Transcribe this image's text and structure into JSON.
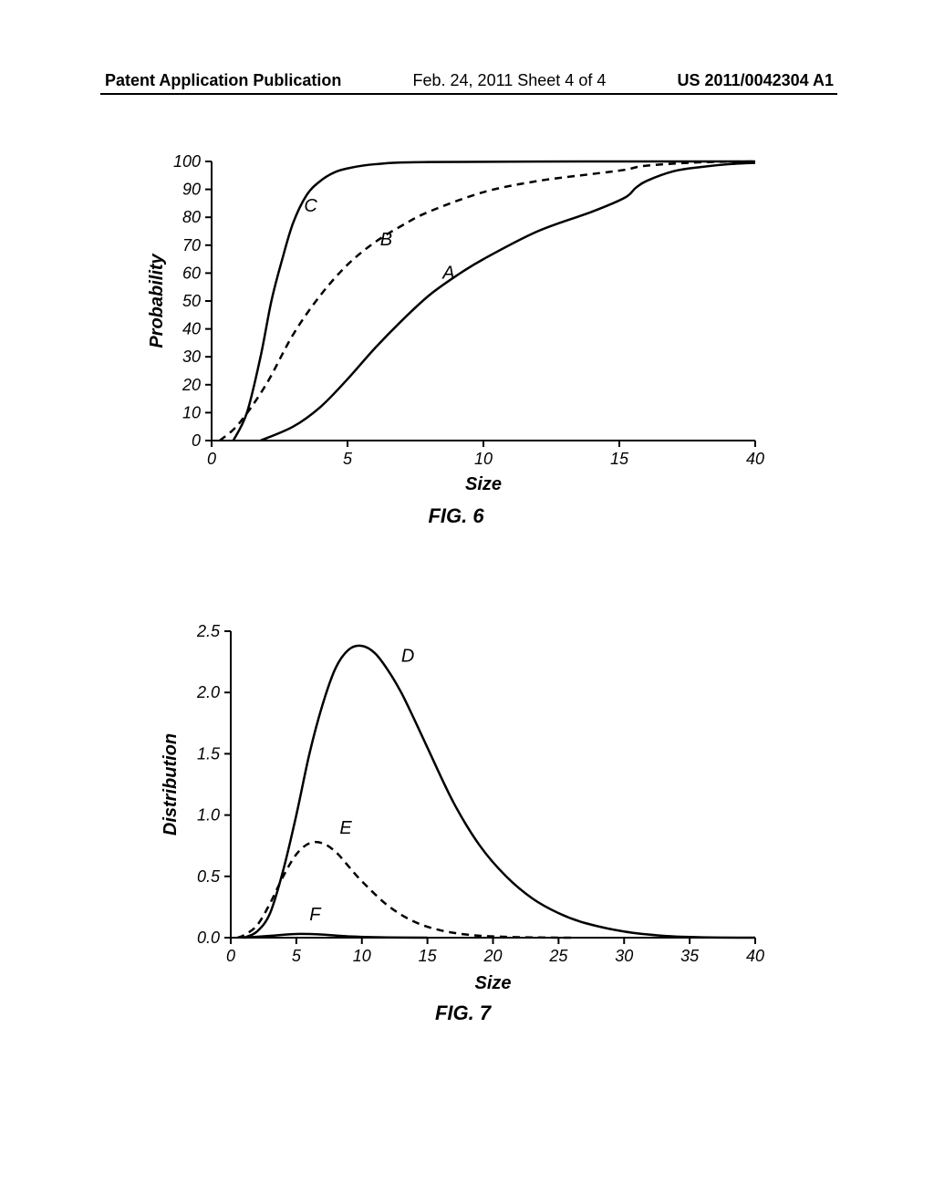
{
  "header": {
    "left": "Patent Application Publication",
    "center": "Feb. 24, 2011  Sheet 4 of 4",
    "right": "US 2011/0042304 A1"
  },
  "fig6": {
    "type": "line",
    "caption": "FIG. 6",
    "xlabel": "Size",
    "ylabel": "Probability",
    "xlim": [
      0,
      40
    ],
    "ylim": [
      0,
      100
    ],
    "xticks": [
      0,
      5,
      10,
      15,
      40
    ],
    "yticks": [
      0,
      10,
      20,
      30,
      40,
      50,
      60,
      70,
      80,
      90,
      100
    ],
    "background_color": "#ffffff",
    "axis_color": "#000000",
    "line_width": 2.5,
    "series": [
      {
        "name": "A",
        "label_pos": {
          "x": 8.5,
          "y": 58
        },
        "dash": "none",
        "color": "#000000",
        "points": [
          [
            1.8,
            0
          ],
          [
            3,
            5
          ],
          [
            4,
            12
          ],
          [
            5,
            22
          ],
          [
            6,
            33
          ],
          [
            7,
            43
          ],
          [
            8,
            52
          ],
          [
            9,
            59
          ],
          [
            10,
            65
          ],
          [
            12,
            75
          ],
          [
            14,
            82
          ],
          [
            16,
            87
          ],
          [
            18,
            90.5
          ],
          [
            20,
            93
          ],
          [
            25,
            96.5
          ],
          [
            30,
            98
          ],
          [
            35,
            99
          ],
          [
            40,
            99.5
          ]
        ]
      },
      {
        "name": "B",
        "label_pos": {
          "x": 6.2,
          "y": 70
        },
        "dash": "8,6",
        "color": "#000000",
        "points": [
          [
            0.3,
            0
          ],
          [
            1,
            6
          ],
          [
            2,
            20
          ],
          [
            3,
            38
          ],
          [
            4,
            52
          ],
          [
            5,
            63
          ],
          [
            6,
            71
          ],
          [
            7,
            77
          ],
          [
            8,
            82
          ],
          [
            10,
            89
          ],
          [
            12,
            93
          ],
          [
            14,
            95.5
          ],
          [
            16,
            97
          ],
          [
            20,
            98.5
          ],
          [
            30,
            99.7
          ],
          [
            40,
            100
          ]
        ]
      },
      {
        "name": "C",
        "label_pos": {
          "x": 3.4,
          "y": 82
        },
        "dash": "none",
        "color": "#000000",
        "points": [
          [
            0.8,
            0
          ],
          [
            1.3,
            10
          ],
          [
            1.8,
            30
          ],
          [
            2.2,
            50
          ],
          [
            2.6,
            65
          ],
          [
            3,
            78
          ],
          [
            3.5,
            88
          ],
          [
            4,
            93
          ],
          [
            4.5,
            96
          ],
          [
            5,
            97.5
          ],
          [
            6,
            99
          ],
          [
            8,
            99.8
          ],
          [
            15,
            100
          ],
          [
            40,
            100
          ]
        ]
      }
    ]
  },
  "fig7": {
    "type": "line",
    "caption": "FIG. 7",
    "xlabel": "Size",
    "ylabel": "Distribution",
    "xlim": [
      0,
      40
    ],
    "ylim": [
      0.0,
      2.5
    ],
    "xticks": [
      0,
      5,
      10,
      15,
      20,
      25,
      30,
      35,
      40
    ],
    "yticks": [
      "0.0",
      "0.5",
      "1.0",
      "1.5",
      "2.0",
      "2.5"
    ],
    "background_color": "#ffffff",
    "axis_color": "#000000",
    "line_width": 2.5,
    "series": [
      {
        "name": "D",
        "label_pos": {
          "x": 13,
          "y": 2.25
        },
        "dash": "none",
        "color": "#000000",
        "points": [
          [
            1,
            0
          ],
          [
            2,
            0.05
          ],
          [
            3,
            0.2
          ],
          [
            4,
            0.55
          ],
          [
            5,
            1.0
          ],
          [
            6,
            1.5
          ],
          [
            7,
            1.9
          ],
          [
            8,
            2.2
          ],
          [
            9,
            2.35
          ],
          [
            10,
            2.38
          ],
          [
            11,
            2.32
          ],
          [
            12,
            2.18
          ],
          [
            13,
            2.0
          ],
          [
            14,
            1.78
          ],
          [
            15,
            1.55
          ],
          [
            17,
            1.1
          ],
          [
            19,
            0.75
          ],
          [
            21,
            0.5
          ],
          [
            23,
            0.32
          ],
          [
            25,
            0.2
          ],
          [
            27,
            0.12
          ],
          [
            30,
            0.05
          ],
          [
            33,
            0.015
          ],
          [
            36,
            0.003
          ],
          [
            40,
            0
          ]
        ]
      },
      {
        "name": "E",
        "label_pos": {
          "x": 8.3,
          "y": 0.85
        },
        "dash": "8,6",
        "color": "#000000",
        "points": [
          [
            0.5,
            0
          ],
          [
            1,
            0.02
          ],
          [
            2,
            0.1
          ],
          [
            3,
            0.28
          ],
          [
            4,
            0.5
          ],
          [
            5,
            0.68
          ],
          [
            6,
            0.77
          ],
          [
            7,
            0.77
          ],
          [
            8,
            0.7
          ],
          [
            9,
            0.58
          ],
          [
            10,
            0.46
          ],
          [
            12,
            0.26
          ],
          [
            14,
            0.13
          ],
          [
            16,
            0.06
          ],
          [
            18,
            0.025
          ],
          [
            20,
            0.01
          ],
          [
            23,
            0.002
          ],
          [
            26,
            0
          ]
        ]
      },
      {
        "name": "F",
        "label_pos": {
          "x": 6,
          "y": 0.14
        },
        "dash": "none",
        "color": "#000000",
        "points": [
          [
            1,
            0
          ],
          [
            3,
            0.015
          ],
          [
            5,
            0.03
          ],
          [
            7,
            0.025
          ],
          [
            9,
            0.01
          ],
          [
            12,
            0.002
          ],
          [
            15,
            0
          ]
        ]
      }
    ]
  }
}
